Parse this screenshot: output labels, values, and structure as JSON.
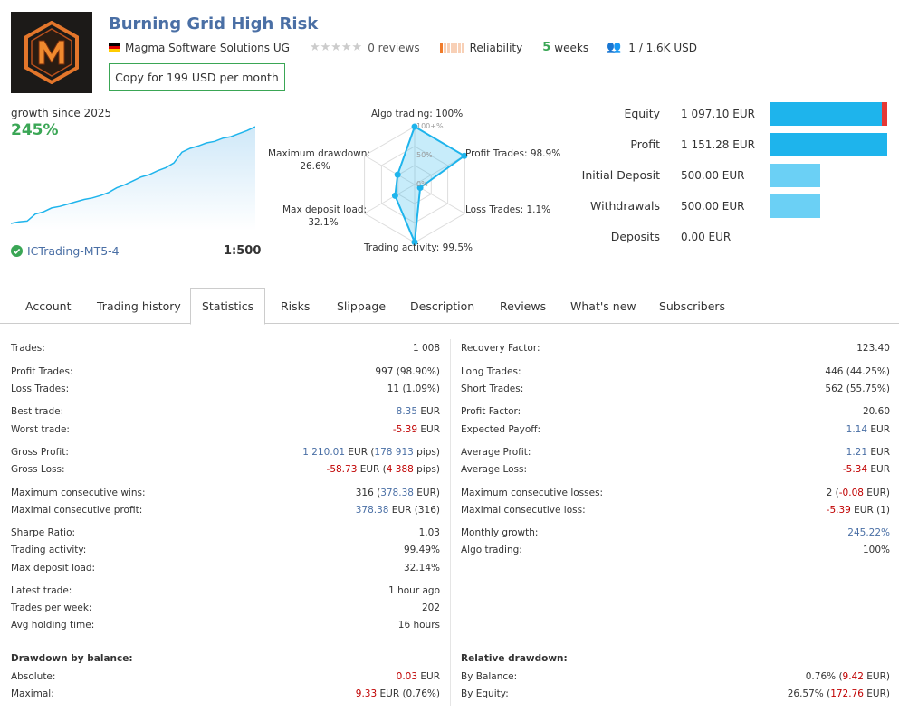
{
  "header": {
    "title": "Burning Grid High Risk",
    "developer": "Magma Software Solutions UG",
    "reviews": "0 reviews",
    "reliability": "Reliability",
    "weeks_num": "5",
    "weeks_label": "weeks",
    "subscribers": "1 / 1.6K USD",
    "copy_button": "Copy for 199 USD per month"
  },
  "growth": {
    "label": "growth since 2025",
    "value": "245%",
    "broker": "ICTrading-MT5-4",
    "leverage": "1:500",
    "curve": [
      0,
      2,
      3,
      12,
      15,
      20,
      22,
      25,
      28,
      31,
      33,
      36,
      40,
      46,
      50,
      55,
      60,
      63,
      68,
      72,
      78,
      92,
      97,
      100,
      104,
      106,
      110,
      112,
      116,
      120,
      125
    ]
  },
  "radar": {
    "algo": "Algo trading: 100%",
    "profit": "Profit Trades: 98.9%",
    "loss": "Loss Trades: 1.1%",
    "activity": "Trading activity: 99.5%",
    "deposit_load_l1": "Max deposit load:",
    "deposit_load_l2": "32.1%",
    "drawdown_l1": "Maximum drawdown:",
    "drawdown_l2": "26.6%",
    "ring100": "100+%",
    "ring50": "50%",
    "ring0": "0%",
    "values": [
      100,
      98.9,
      1.1,
      99.5,
      32.1,
      26.6
    ]
  },
  "balance": [
    {
      "label": "Equity",
      "value": "1 097.10 EUR",
      "fill": 0.95,
      "color": "#1eb4ec",
      "extra": true
    },
    {
      "label": "Profit",
      "value": "1 151.28 EUR",
      "fill": 1.0,
      "color": "#1eb4ec"
    },
    {
      "label": "Initial Deposit",
      "value": "500.00 EUR",
      "fill": 0.43,
      "color": "#6bd0f5"
    },
    {
      "label": "Withdrawals",
      "value": "500.00 EUR",
      "fill": 0.43,
      "color": "#6bd0f5"
    },
    {
      "label": "Deposits",
      "value": "0.00 EUR",
      "fill": 0,
      "color": "#6bd0f5"
    }
  ],
  "tabs": [
    "Account",
    "Trading history",
    "Statistics",
    "Risks",
    "Slippage",
    "Description",
    "Reviews",
    "What's new",
    "Subscribers"
  ],
  "left_stats": [
    {
      "label": "Trades:",
      "parts": [
        {
          "t": "1 008",
          "c": ""
        }
      ]
    },
    {
      "label": "Profit Trades:",
      "parts": [
        {
          "t": "997 (98.90%)",
          "c": ""
        }
      ]
    },
    {
      "label": "Loss Trades:",
      "parts": [
        {
          "t": "11 (1.09%)",
          "c": ""
        }
      ]
    },
    {
      "label": "Best trade:",
      "parts": [
        {
          "t": "8.35",
          "c": "blue"
        },
        {
          "t": " EUR",
          "c": ""
        }
      ]
    },
    {
      "label": "Worst trade:",
      "parts": [
        {
          "t": "-5.39",
          "c": "red"
        },
        {
          "t": " EUR",
          "c": ""
        }
      ]
    },
    {
      "label": "Gross Profit:",
      "parts": [
        {
          "t": "1 210.01",
          "c": "blue"
        },
        {
          "t": " EUR (",
          "c": ""
        },
        {
          "t": "178 913",
          "c": "blue"
        },
        {
          "t": " pips)",
          "c": ""
        }
      ]
    },
    {
      "label": "Gross Loss:",
      "parts": [
        {
          "t": "-58.73",
          "c": "red"
        },
        {
          "t": " EUR (",
          "c": ""
        },
        {
          "t": "4 388",
          "c": "red"
        },
        {
          "t": " pips)",
          "c": ""
        }
      ]
    },
    {
      "label": "Maximum consecutive wins:",
      "parts": [
        {
          "t": "316 (",
          "c": ""
        },
        {
          "t": "378.38",
          "c": "blue"
        },
        {
          "t": " EUR)",
          "c": ""
        }
      ]
    },
    {
      "label": "Maximal consecutive profit:",
      "parts": [
        {
          "t": "378.38",
          "c": "blue"
        },
        {
          "t": " EUR (316)",
          "c": ""
        }
      ]
    },
    {
      "label": "Sharpe Ratio:",
      "parts": [
        {
          "t": "1.03",
          "c": ""
        }
      ]
    },
    {
      "label": "Trading activity:",
      "parts": [
        {
          "t": "99.49%",
          "c": ""
        }
      ]
    },
    {
      "label": "Max deposit load:",
      "parts": [
        {
          "t": "32.14%",
          "c": ""
        }
      ]
    },
    {
      "label": "Latest trade:",
      "parts": [
        {
          "t": "1 hour ago",
          "c": ""
        }
      ]
    },
    {
      "label": "Trades per week:",
      "parts": [
        {
          "t": "202",
          "c": ""
        }
      ]
    },
    {
      "label": "Avg holding time:",
      "parts": [
        {
          "t": "16 hours",
          "c": ""
        }
      ]
    },
    {
      "label": "Drawdown by balance:",
      "parts": [
        {
          "t": "",
          "c": ""
        }
      ],
      "section": true
    },
    {
      "label": "Absolute:",
      "parts": [
        {
          "t": "0.03",
          "c": "red"
        },
        {
          "t": " EUR",
          "c": ""
        }
      ]
    },
    {
      "label": "Maximal:",
      "parts": [
        {
          "t": "9.33",
          "c": "red"
        },
        {
          "t": " EUR (0.76%)",
          "c": ""
        }
      ]
    }
  ],
  "right_stats": [
    {
      "label": "Recovery Factor:",
      "parts": [
        {
          "t": "123.40",
          "c": ""
        }
      ]
    },
    {
      "label": "Long Trades:",
      "parts": [
        {
          "t": "446 (44.25%)",
          "c": ""
        }
      ]
    },
    {
      "label": "Short Trades:",
      "parts": [
        {
          "t": "562 (55.75%)",
          "c": ""
        }
      ]
    },
    {
      "label": "Profit Factor:",
      "parts": [
        {
          "t": "20.60",
          "c": ""
        }
      ]
    },
    {
      "label": "Expected Payoff:",
      "parts": [
        {
          "t": "1.14",
          "c": "blue"
        },
        {
          "t": " EUR",
          "c": ""
        }
      ]
    },
    {
      "label": "Average Profit:",
      "parts": [
        {
          "t": "1.21",
          "c": "blue"
        },
        {
          "t": " EUR",
          "c": ""
        }
      ]
    },
    {
      "label": "Average Loss:",
      "parts": [
        {
          "t": "-5.34",
          "c": "red"
        },
        {
          "t": " EUR",
          "c": ""
        }
      ]
    },
    {
      "label": "Maximum consecutive losses:",
      "parts": [
        {
          "t": "2 (",
          "c": ""
        },
        {
          "t": "-0.08",
          "c": "red"
        },
        {
          "t": " EUR)",
          "c": ""
        }
      ]
    },
    {
      "label": "Maximal consecutive loss:",
      "parts": [
        {
          "t": "-5.39",
          "c": "red"
        },
        {
          "t": " EUR (1)",
          "c": ""
        }
      ]
    },
    {
      "label": "Monthly growth:",
      "parts": [
        {
          "t": "245.22%",
          "c": "blue"
        }
      ]
    },
    {
      "label": "Algo trading:",
      "parts": [
        {
          "t": "100%",
          "c": ""
        }
      ]
    },
    {
      "label": "Relative drawdown:",
      "parts": [
        {
          "t": "",
          "c": ""
        }
      ],
      "section": true
    },
    {
      "label": "By Balance:",
      "parts": [
        {
          "t": "0.76% (",
          "c": ""
        },
        {
          "t": "9.42",
          "c": "red"
        },
        {
          "t": " EUR)",
          "c": ""
        }
      ]
    },
    {
      "label": "By Equity:",
      "parts": [
        {
          "t": "26.57% (",
          "c": ""
        },
        {
          "t": "172.76",
          "c": "red"
        },
        {
          "t": " EUR)",
          "c": ""
        }
      ]
    }
  ]
}
